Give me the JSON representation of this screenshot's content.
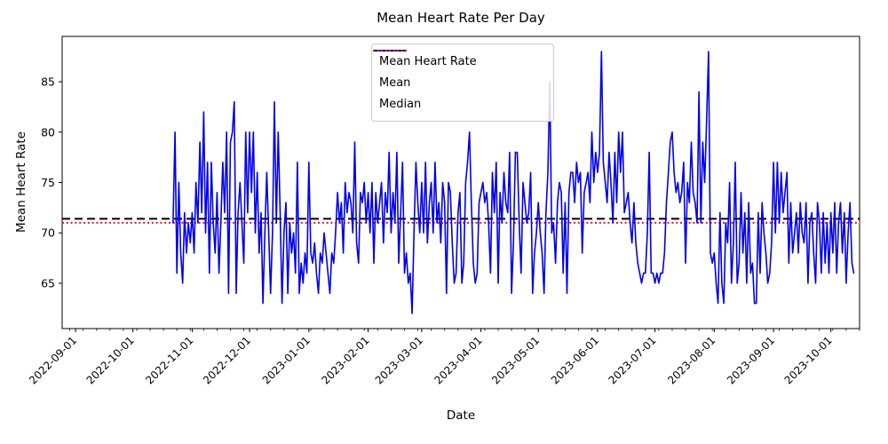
{
  "chart_data": {
    "type": "line",
    "title": "Mean Heart Rate Per Day",
    "xlabel": "Date",
    "ylabel": "Mean Heart Rate",
    "grid": false,
    "legend_position": "upper center",
    "x_epoch": "2022-09-01",
    "xlim": [
      "2022-08-25",
      "2023-10-16"
    ],
    "ylim": [
      60.5,
      89.5
    ],
    "y_ticks": [
      65,
      70,
      75,
      80,
      85
    ],
    "x_tick_labels": [
      "2022-09-01",
      "2022-10-01",
      "2022-11-01",
      "2022-12-01",
      "2023-01-01",
      "2023-02-01",
      "2023-03-01",
      "2023-04-01",
      "2023-05-01",
      "2023-06-01",
      "2023-07-01",
      "2023-08-01",
      "2023-09-01",
      "2023-10-01"
    ],
    "x_minor_tick_interval_days": 7,
    "x_minor_tick_start": "2022-08-29",
    "series": [
      {
        "name": "Mean Heart Rate",
        "color": "#0000ee",
        "style": "solid",
        "x_start": "2022-10-22",
        "x_interval": "daily",
        "values": [
          71,
          80,
          66,
          75,
          68,
          65,
          72,
          68,
          71,
          69,
          72,
          68,
          75,
          71,
          79,
          72,
          82,
          70,
          77,
          66,
          77,
          71,
          68,
          74,
          66,
          71,
          77,
          72,
          80,
          64,
          79,
          80,
          83,
          64,
          72,
          75,
          71,
          67,
          80,
          72,
          80,
          74,
          80,
          70,
          76,
          68,
          72,
          63,
          70,
          76,
          70,
          64,
          70,
          83,
          71,
          80,
          72,
          63,
          70,
          73,
          64,
          71,
          68,
          70,
          66,
          77,
          64,
          67,
          65,
          68,
          66,
          77,
          68,
          67,
          69,
          66,
          64,
          68,
          67,
          70,
          68,
          66,
          64,
          68,
          67,
          70,
          74,
          71,
          73,
          68,
          75,
          72,
          74,
          73,
          70,
          79,
          69,
          67,
          74,
          73,
          75,
          71,
          74,
          70,
          75,
          67,
          74,
          71,
          73,
          75,
          69,
          74,
          72,
          78,
          70,
          74,
          71,
          78,
          67,
          72,
          77,
          66,
          68,
          65,
          66,
          62,
          70,
          77,
          73,
          70,
          75,
          70,
          77,
          69,
          73,
          75,
          70,
          77,
          71,
          73,
          69,
          75,
          73,
          64,
          75,
          74,
          69,
          65,
          66,
          72,
          74,
          65,
          67,
          75,
          77,
          80,
          73,
          67,
          65,
          66,
          73,
          74,
          75,
          73,
          74,
          71,
          66,
          76,
          72,
          77,
          65,
          74,
          71,
          76,
          73,
          72,
          78,
          64,
          69,
          78,
          78,
          71,
          66,
          75,
          73,
          71,
          72,
          76,
          64,
          68,
          70,
          73,
          70,
          68,
          64,
          72,
          76,
          85,
          70,
          71,
          67,
          73,
          75,
          74,
          66,
          73,
          64,
          74,
          76,
          76,
          73,
          77,
          75,
          76,
          68,
          74,
          75,
          76,
          73,
          80,
          75,
          78,
          76,
          78,
          88,
          77,
          75,
          73,
          78,
          75,
          71,
          78,
          73,
          80,
          76,
          80,
          72,
          73,
          74,
          71,
          69,
          73,
          69,
          67,
          66,
          65,
          66,
          66,
          70,
          78,
          66,
          66,
          65,
          66,
          65,
          66,
          66,
          68,
          73,
          76,
          79,
          80,
          76,
          74,
          75,
          73,
          74,
          77,
          67,
          75,
          73,
          79,
          74,
          73,
          71,
          84,
          71,
          79,
          75,
          81,
          88,
          68,
          67,
          68,
          65,
          63,
          72,
          65,
          63,
          71,
          69,
          75,
          65,
          69,
          77,
          65,
          67,
          74,
          68,
          72,
          65,
          73,
          66,
          67,
          63,
          63,
          72,
          66,
          73,
          70,
          68,
          65,
          66,
          69,
          77,
          70,
          77,
          71,
          76,
          72,
          74,
          76,
          67,
          73,
          68,
          70,
          72,
          68,
          73,
          70,
          69,
          73,
          65,
          71,
          72,
          68,
          65,
          73,
          71,
          66,
          72,
          67,
          71,
          66,
          72,
          68,
          73,
          66,
          71,
          73,
          68,
          72,
          65,
          70,
          73,
          67,
          66
        ]
      },
      {
        "name": "Mean",
        "color": "#000000",
        "style": "dashed",
        "value": 71.4
      },
      {
        "name": "Median",
        "color": "#dc143c",
        "style": "dotted",
        "value": 71.0
      }
    ]
  }
}
